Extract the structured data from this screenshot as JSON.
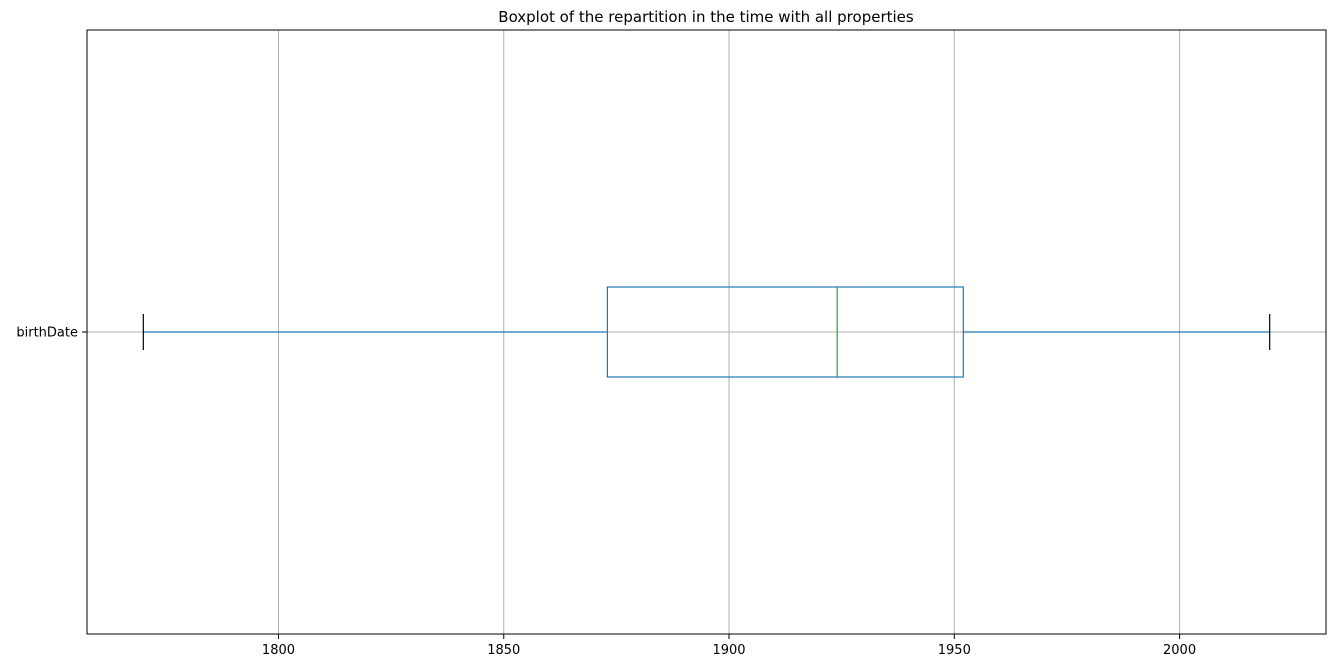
{
  "chart_data": {
    "type": "boxplot",
    "title": "Boxplot of the repartition in the time with all properties",
    "xlabel": "",
    "ylabel": "",
    "orientation": "horizontal",
    "grid": true,
    "xlim": [
      1757.5,
      2032.5
    ],
    "xticks": [
      1800,
      1850,
      1900,
      1950,
      2000
    ],
    "xtick_labels": [
      "1800",
      "1850",
      "1900",
      "1950",
      "2000"
    ],
    "categories": [
      "birthDate"
    ],
    "boxes": [
      {
        "name": "birthDate",
        "whisker_low": 1770,
        "q1": 1873,
        "median": 1924,
        "q3": 1952,
        "whisker_high": 2020
      }
    ],
    "colors": {
      "box": "#1f77b4",
      "median": "#2ca02c",
      "caps": "#000000",
      "grid": "#b0b0b0",
      "axes": "#000000"
    }
  }
}
